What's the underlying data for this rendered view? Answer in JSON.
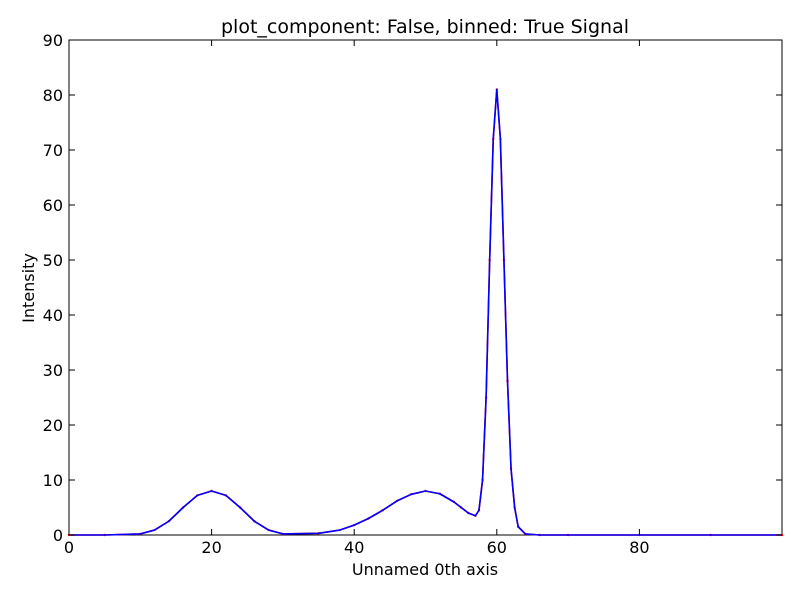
{
  "chart_data": {
    "type": "line",
    "title": "plot_component: False, binned: True Signal",
    "xlabel": "Unnamed 0th axis",
    "ylabel": "Intensity",
    "xlim": [
      0,
      100
    ],
    "ylim": [
      0,
      90
    ],
    "x_ticks": [
      "0",
      "20",
      "40",
      "60",
      "80"
    ],
    "y_ticks": [
      "0",
      "10",
      "20",
      "30",
      "40",
      "50",
      "60",
      "70",
      "80",
      "90"
    ],
    "grid": false,
    "legend": "none",
    "series": [
      {
        "color": "#ff0000",
        "style": "points",
        "x": [
          0,
          5,
          10,
          12,
          14,
          16,
          18,
          20,
          22,
          24,
          26,
          28,
          30,
          35,
          38,
          40,
          42,
          44,
          46,
          48,
          50,
          52,
          54,
          55,
          56,
          57,
          57.5,
          58,
          58.5,
          59,
          59.5,
          60,
          60.5,
          61,
          61.5,
          62,
          62.5,
          63,
          64,
          66,
          70,
          80,
          90,
          100
        ],
        "y": [
          0,
          0,
          0.2,
          0.9,
          2.5,
          5.0,
          7.2,
          8.0,
          7.2,
          5.0,
          2.5,
          0.9,
          0.2,
          0.3,
          0.9,
          1.8,
          3.0,
          4.5,
          6.2,
          7.4,
          8.0,
          7.5,
          6.0,
          5.0,
          4.0,
          3.5,
          4.5,
          10,
          25,
          50,
          72,
          81,
          72,
          50,
          28,
          12,
          5,
          1.5,
          0.2,
          0,
          0,
          0,
          0,
          0
        ]
      },
      {
        "color": "#0000ff",
        "style": "line",
        "x": [
          0,
          5,
          10,
          12,
          14,
          16,
          18,
          20,
          22,
          24,
          26,
          28,
          30,
          35,
          38,
          40,
          42,
          44,
          46,
          48,
          50,
          52,
          54,
          55,
          56,
          57,
          57.5,
          58,
          58.5,
          59,
          59.5,
          60,
          60.5,
          61,
          61.5,
          62,
          62.5,
          63,
          64,
          66,
          70,
          80,
          90,
          100
        ],
        "y": [
          0,
          0,
          0.2,
          0.9,
          2.5,
          5.0,
          7.2,
          8.0,
          7.2,
          5.0,
          2.5,
          0.9,
          0.2,
          0.3,
          0.9,
          1.8,
          3.0,
          4.5,
          6.2,
          7.4,
          8.0,
          7.5,
          6.0,
          5.0,
          4.0,
          3.5,
          4.5,
          10,
          25,
          50,
          72,
          81,
          72,
          50,
          28,
          12,
          5,
          1.5,
          0.2,
          0,
          0,
          0,
          0,
          0
        ]
      }
    ]
  }
}
